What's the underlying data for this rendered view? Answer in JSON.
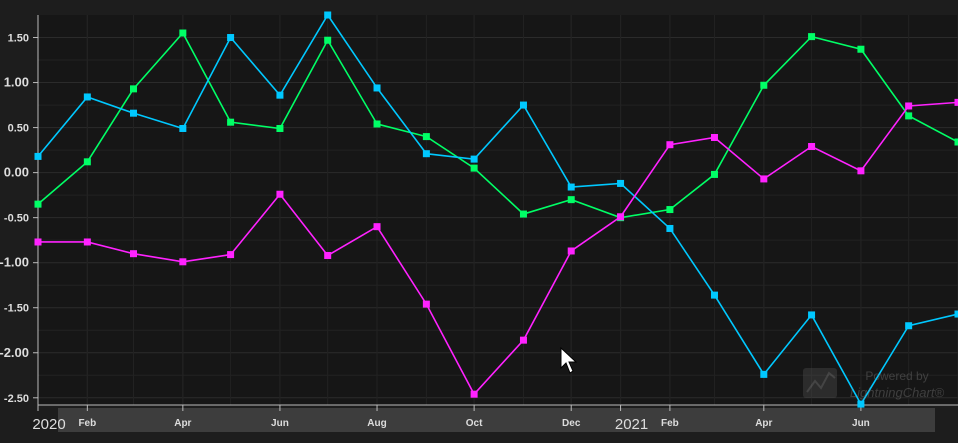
{
  "chart_data": {
    "type": "line",
    "x_dates": [
      "2020-01-01",
      "2020-02-01",
      "2020-03-01",
      "2020-04-01",
      "2020-05-01",
      "2020-06-01",
      "2020-07-01",
      "2020-08-01",
      "2020-09-01",
      "2020-10-01",
      "2020-11-01",
      "2020-12-01",
      "2021-01-01",
      "2021-02-01",
      "2021-03-01",
      "2021-04-01",
      "2021-05-01",
      "2021-06-01",
      "2021-07-01",
      "2021-08-01"
    ],
    "series": [
      {
        "color": "#00ff66",
        "values": [
          -0.35,
          0.12,
          0.93,
          1.55,
          0.56,
          0.49,
          1.47,
          0.54,
          0.4,
          0.05,
          -0.46,
          -0.3,
          -0.5,
          -0.41,
          -0.02,
          0.97,
          1.51,
          1.37,
          0.63,
          0.34
        ]
      },
      {
        "color": "#00c8ff",
        "values": [
          0.18,
          0.84,
          0.66,
          0.49,
          1.5,
          0.86,
          1.75,
          0.94,
          0.21,
          0.15,
          0.75,
          -0.16,
          -0.12,
          -0.62,
          -1.36,
          -2.24,
          -1.58,
          -2.57,
          -1.7,
          -1.57
        ]
      },
      {
        "color": "#ff22ff",
        "values": [
          -0.77,
          -0.77,
          -0.9,
          -0.99,
          -0.91,
          -0.24,
          -0.92,
          -0.6,
          -1.46,
          -2.46,
          -1.86,
          -0.87,
          -0.49,
          0.31,
          0.39,
          -0.07,
          0.29,
          0.02,
          0.74,
          0.78
        ]
      }
    ],
    "ylim": [
      -2.58,
      1.75
    ],
    "xlim": [
      "2020-01-01",
      "2021-08-01"
    ],
    "y_ticks": [
      "1.50",
      "1.00",
      "0.50",
      "0.00",
      "-0.50",
      "-1.00",
      "-1.50",
      "-2.00",
      "-2.50"
    ],
    "x_ticks": [
      {
        "label": "2020",
        "date": "2020-01-01",
        "major": true
      },
      {
        "label": "Feb",
        "date": "2020-02-01",
        "major": false
      },
      {
        "label": "Apr",
        "date": "2020-04-01",
        "major": false
      },
      {
        "label": "Jun",
        "date": "2020-06-01",
        "major": false
      },
      {
        "label": "Aug",
        "date": "2020-08-01",
        "major": false
      },
      {
        "label": "Oct",
        "date": "2020-10-01",
        "major": false
      },
      {
        "label": "Dec",
        "date": "2020-12-01",
        "major": false
      },
      {
        "label": "2021",
        "date": "2021-01-01",
        "major": true
      },
      {
        "label": "Feb",
        "date": "2021-02-01",
        "major": false
      },
      {
        "label": "Apr",
        "date": "2021-04-01",
        "major": false
      },
      {
        "label": "Jun",
        "date": "2021-06-01",
        "major": false
      }
    ],
    "grid": true,
    "title": "",
    "xlabel": "",
    "ylabel": ""
  },
  "watermark": {
    "line1": "Powered by",
    "line2": "LightningChart®",
    "icon": "lightningchart-logo-icon"
  },
  "colors": {
    "background": "#1d1d1d",
    "plot_background": "#161616",
    "grid": "#2b2b2b",
    "axis_text": "#dddddd"
  }
}
